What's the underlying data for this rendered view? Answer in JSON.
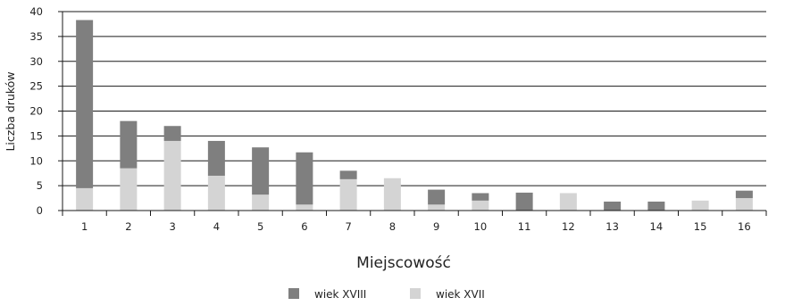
{
  "chart_data": {
    "type": "bar",
    "stacked": true,
    "xlabel": "Miejscowość",
    "ylabel": "Liczba druków",
    "ylim": [
      0,
      40
    ],
    "yticks": [
      0,
      5,
      10,
      15,
      20,
      25,
      30,
      35,
      40
    ],
    "grid": true,
    "legend_position": "bottom",
    "categories": [
      "1",
      "2",
      "3",
      "4",
      "5",
      "6",
      "7",
      "8",
      "9",
      "10",
      "11",
      "12",
      "13",
      "14",
      "15",
      "16"
    ],
    "series": [
      {
        "name": "wiek XVII",
        "color": "#d4d4d4",
        "values": [
          4.5,
          8.5,
          14,
          7,
          3.2,
          1.2,
          6.3,
          6.5,
          1.2,
          2,
          0,
          3.5,
          0,
          0,
          2,
          2.5
        ]
      },
      {
        "name": "wiek XVIII",
        "color": "#7f7f7f",
        "values": [
          33.8,
          9.5,
          3,
          7,
          9.5,
          10.5,
          1.7,
          0,
          3,
          1.5,
          3.6,
          0,
          1.8,
          1.8,
          0,
          1.5
        ]
      }
    ],
    "legend_order": [
      "wiek XVIII",
      "wiek XVII"
    ]
  }
}
